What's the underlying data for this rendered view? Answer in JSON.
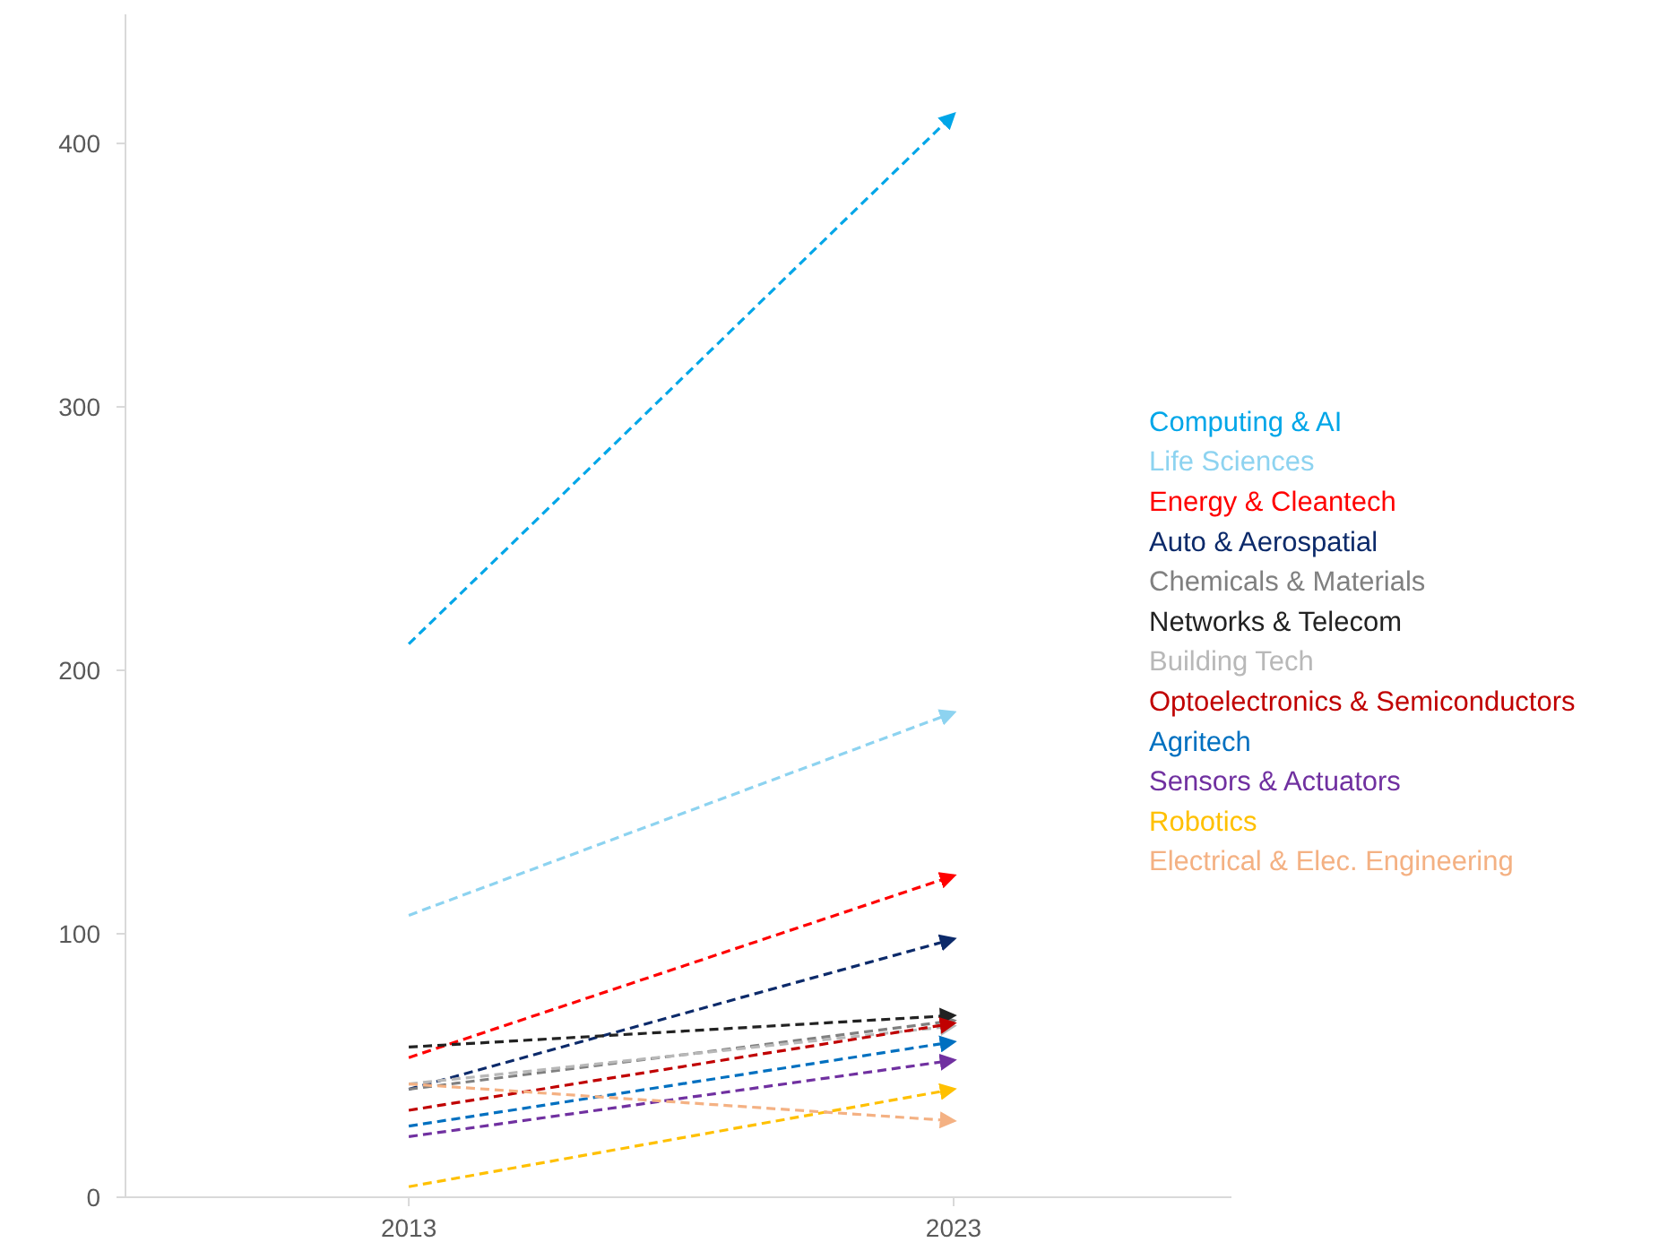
{
  "chart_data": {
    "type": "line",
    "x": [
      2013,
      2023
    ],
    "xlim": [
      2007.8,
      2028.1
    ],
    "xticks": [
      2013,
      2023
    ],
    "ylim": [
      0,
      449
    ],
    "yticks": [
      0,
      100,
      200,
      300,
      400
    ],
    "grid": false,
    "legend": "right",
    "line_style": "dashed",
    "series": [
      {
        "name": "Computing & AI",
        "color": "#00a6e8",
        "values": [
          210,
          411
        ]
      },
      {
        "name": "Life Sciences",
        "color": "#8dd3f0",
        "values": [
          107,
          184
        ]
      },
      {
        "name": "Energy & Cleantech",
        "color": "#ff0000",
        "values": [
          53,
          122
        ]
      },
      {
        "name": "Auto & Aerospatial",
        "color": "#0c2a6a",
        "values": [
          41,
          98
        ]
      },
      {
        "name": "Chemicals & Materials",
        "color": "#808080",
        "values": [
          41,
          67
        ]
      },
      {
        "name": "Networks & Telecom",
        "color": "#222222",
        "values": [
          57,
          69
        ]
      },
      {
        "name": "Building Tech",
        "color": "#b8b8b8",
        "values": [
          43,
          65
        ]
      },
      {
        "name": "Optoelectronics & Semiconductors",
        "color": "#c00000",
        "values": [
          33,
          66
        ]
      },
      {
        "name": "Agritech",
        "color": "#0070c0",
        "values": [
          27,
          59
        ]
      },
      {
        "name": "Sensors & Actuators",
        "color": "#7030a0",
        "values": [
          23,
          52
        ]
      },
      {
        "name": "Robotics",
        "color": "#ffc000",
        "values": [
          4,
          41
        ]
      },
      {
        "name": "Electrical & Elec. Engineering",
        "color": "#f4b183",
        "values": [
          43,
          29
        ]
      }
    ]
  }
}
